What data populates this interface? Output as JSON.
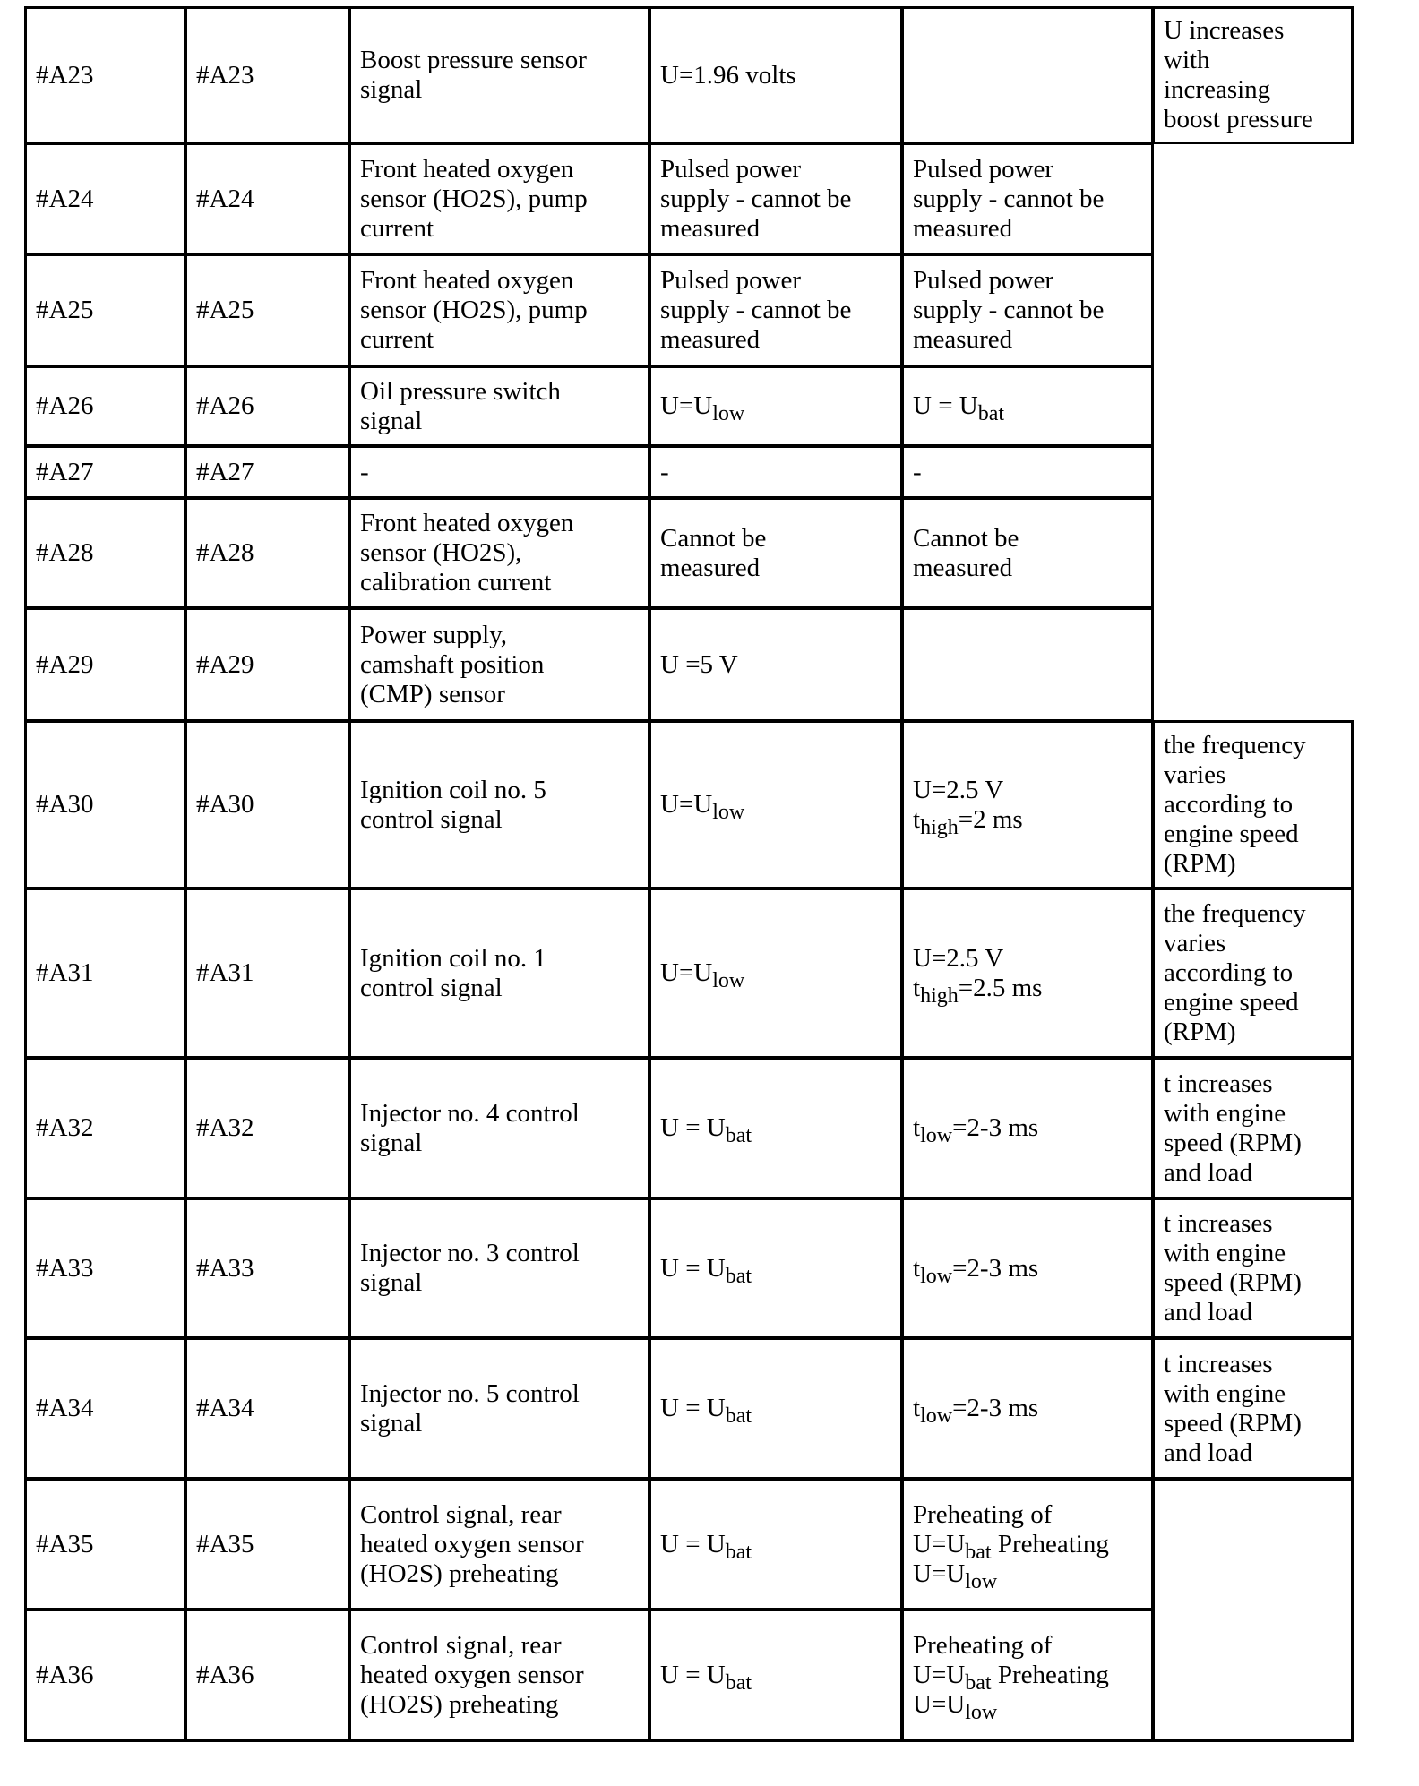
{
  "rows": [
    {
      "c1": "#A23",
      "c2": "#A23",
      "desc": "Boost pressure sensor\nsignal",
      "v1": "U=1.96 volts",
      "v2": "",
      "note": "U increases\nwith\nincreasing\nboost pressure"
    },
    {
      "c1": "#A24",
      "c2": "#A24",
      "desc": "Front heated oxygen\nsensor (HO2S), pump\ncurrent",
      "v1": "Pulsed power\nsupply - cannot be\nmeasured",
      "v2": "Pulsed power\nsupply - cannot be\nmeasured",
      "note": null
    },
    {
      "c1": "#A25",
      "c2": "#A25",
      "desc": "Front heated oxygen\nsensor (HO2S), pump\ncurrent",
      "v1": "Pulsed power\nsupply - cannot be\nmeasured",
      "v2": "Pulsed power\nsupply - cannot be\nmeasured",
      "note": null
    },
    {
      "c1": "#A26",
      "c2": "#A26",
      "desc": "Oil pressure switch\nsignal",
      "v1": "U=U<sub>low</sub>",
      "v2": "U = U<sub>bat</sub>",
      "note": null
    },
    {
      "c1": "#A27",
      "c2": "#A27",
      "desc": "-",
      "v1": "-",
      "v2": "-",
      "note": null
    },
    {
      "c1": "#A28",
      "c2": "#A28",
      "desc": "Front heated oxygen\nsensor (HO2S),\ncalibration current",
      "v1": "Cannot be\nmeasured",
      "v2": "Cannot be\nmeasured",
      "note": null
    },
    {
      "c1": "#A29",
      "c2": "#A29",
      "desc": "Power supply,\ncamshaft position\n(CMP) sensor",
      "v1": "U =5 V",
      "v2": "",
      "note": null
    },
    {
      "c1": "#A30",
      "c2": "#A30",
      "desc": "Ignition coil no. 5\ncontrol signal",
      "v1": "U=U<sub>low</sub>",
      "v2": "U=2.5 V\nt<sub>high</sub>=2 ms",
      "note": "the frequency\nvaries\naccording to\nengine speed\n(RPM)"
    },
    {
      "c1": "#A31",
      "c2": "#A31",
      "desc": "Ignition coil no. 1\ncontrol signal",
      "v1": "U=U<sub>low</sub>",
      "v2": "U=2.5 V\nt<sub>high</sub>=2.5 ms",
      "note": "the frequency\nvaries\naccording to\nengine speed\n(RPM)"
    },
    {
      "c1": "#A32",
      "c2": "#A32",
      "desc": "Injector no. 4 control\nsignal",
      "v1": "U = U<sub>bat</sub>",
      "v2": "t<sub>low</sub>=2-3 ms",
      "note": "t increases\nwith engine\nspeed (RPM)\nand load"
    },
    {
      "c1": "#A33",
      "c2": "#A33",
      "desc": "Injector no. 3 control\nsignal",
      "v1": "U = U<sub>bat</sub>",
      "v2": "t<sub>low</sub>=2-3 ms",
      "note": "t increases\nwith engine\nspeed (RPM)\nand load"
    },
    {
      "c1": "#A34",
      "c2": "#A34",
      "desc": "Injector no. 5 control\nsignal",
      "v1": "U = U<sub>bat</sub>",
      "v2": "t<sub>low</sub>=2-3 ms",
      "note": "t increases\nwith engine\nspeed (RPM)\nand load"
    },
    {
      "c1": "#A35",
      "c2": "#A35",
      "desc": "Control signal, rear\nheated oxygen sensor\n(HO2S) preheating",
      "v1": "U = U<sub>bat</sub>",
      "v2": "Preheating of\nU=U<sub>bat</sub> Preheating\nU=U<sub>low</sub>",
      "note": ""
    },
    {
      "c1": "#A36",
      "c2": "#A36",
      "desc": "Control signal, rear\nheated oxygen sensor\n(HO2S) preheating",
      "v1": "U = U<sub>bat</sub>",
      "v2": "Preheating of\nU=U<sub>bat</sub> Preheating\nU=U<sub>low</sub>",
      "note": ""
    }
  ]
}
